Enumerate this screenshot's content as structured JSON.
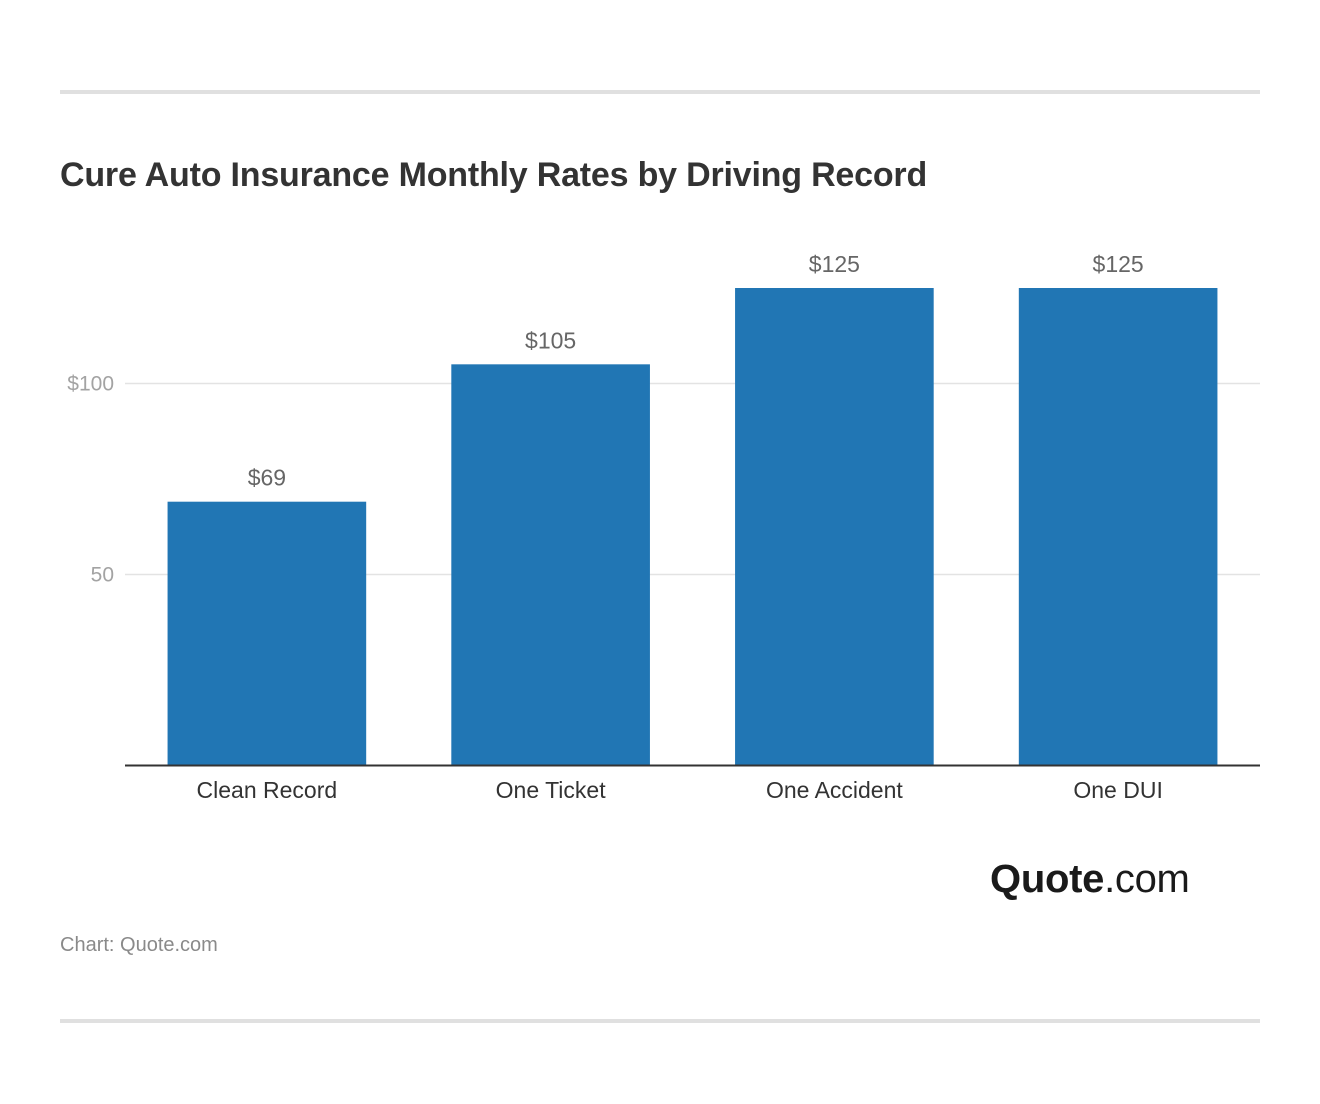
{
  "chart_data": {
    "type": "bar",
    "title": "Cure Auto Insurance Monthly Rates by Driving Record",
    "categories": [
      "Clean Record",
      "One Ticket",
      "One Accident",
      "One DUI"
    ],
    "values": [
      69,
      105,
      125,
      125
    ],
    "value_labels": [
      "$69",
      "$105",
      "$125",
      "$125"
    ],
    "y_ticks": [
      50,
      100
    ],
    "y_tick_labels": [
      "50",
      "$100"
    ],
    "ylim": [
      0,
      125
    ],
    "xlabel": "",
    "ylabel": "",
    "grid": true,
    "bar_color": "#2176b4"
  },
  "logo": {
    "bold": "Quote",
    "light": ".com"
  },
  "source": "Chart: Quote.com"
}
